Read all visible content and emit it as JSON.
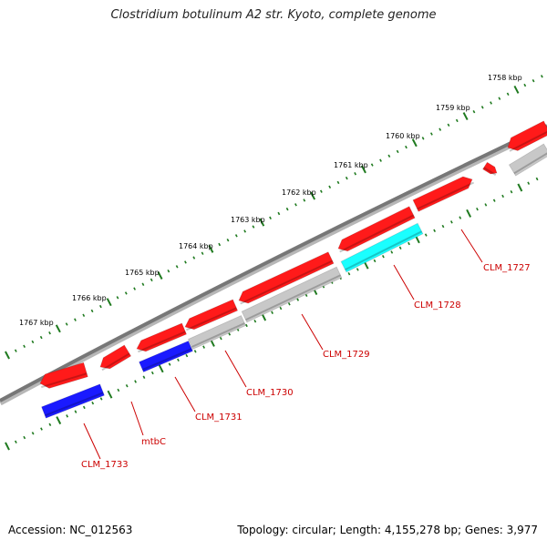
{
  "title": "Clostridium botulinum A2 str. Kyoto, complete genome",
  "footer": {
    "accession": "Accession: NC_012563",
    "summary": "Topology: circular; Length: 4,155,278 bp; Genes: 3,977"
  },
  "colors": {
    "backbone": "#7a7a7a",
    "tick": "#1f7a1f",
    "label": "#cc0000",
    "red": "#ff1a1a",
    "blue": "#1a1aff",
    "grey": "#c8c8c8",
    "cyan": "#1affff",
    "kbp_text": "#000000"
  },
  "scale_labels": [
    "1758 kbp",
    "1759 kbp",
    "1760 kbp",
    "1761 kbp",
    "1762 kbp",
    "1763 kbp",
    "1764 kbp",
    "1765 kbp",
    "1766 kbp",
    "1767 kbp"
  ],
  "features": [
    {
      "color": "red",
      "strand": "outer"
    },
    {
      "color": "red",
      "strand": "outer"
    },
    {
      "color": "red",
      "strand": "outer"
    },
    {
      "color": "red",
      "strand": "outer"
    },
    {
      "color": "red",
      "strand": "outer"
    },
    {
      "color": "red",
      "strand": "outer"
    },
    {
      "color": "red",
      "strand": "outer"
    },
    {
      "color": "red",
      "strand": "outer"
    },
    {
      "color": "red",
      "strand": "outer"
    },
    {
      "color": "blue",
      "strand": "inner"
    },
    {
      "color": "blue",
      "strand": "inner"
    },
    {
      "color": "grey",
      "strand": "inner"
    },
    {
      "color": "grey",
      "strand": "inner"
    },
    {
      "color": "cyan",
      "strand": "inner"
    },
    {
      "color": "grey",
      "strand": "inner"
    }
  ],
  "gene_labels": [
    "CLM_1727",
    "CLM_1728",
    "CLM_1729",
    "CLM_1730",
    "CLM_1731",
    "mtbC",
    "CLM_1733"
  ]
}
